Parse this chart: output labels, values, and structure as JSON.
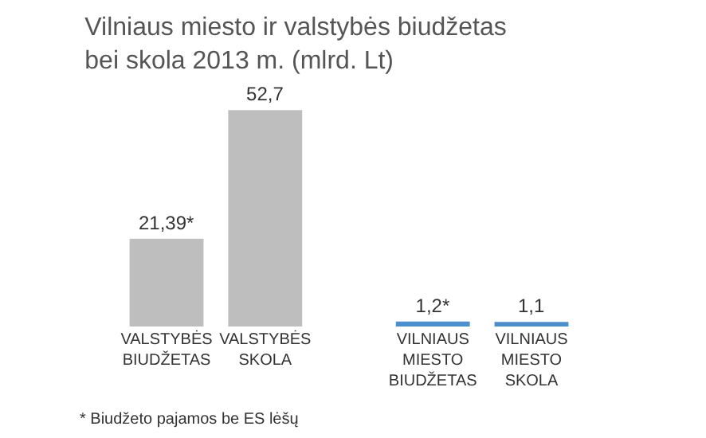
{
  "chart_data": {
    "type": "bar",
    "title": "Vilniaus miesto ir valstybės biudžetas\nbei skola 2013 m. (mlrd. Lt)",
    "categories": [
      "VALSTYBĖS\nBIUDŽETAS",
      "VALSTYBĖS\nSKOLA",
      "VILNIAUS\nMIESTO\nBIUDŽETAS",
      "VILNIAUS\nMIESTO\nSKOLA"
    ],
    "values": [
      21.39,
      52.7,
      1.2,
      1.1
    ],
    "value_labels": [
      "21,39*",
      "52,7",
      "1,2*",
      "1,1"
    ],
    "colors": [
      "#bebebe",
      "#bebebe",
      "#4a8fd0",
      "#4a8fd0"
    ],
    "tick_labels": "x",
    "legend": false,
    "annotations": [
      "* Biudžeto pajamos be ES lėšų"
    ]
  }
}
